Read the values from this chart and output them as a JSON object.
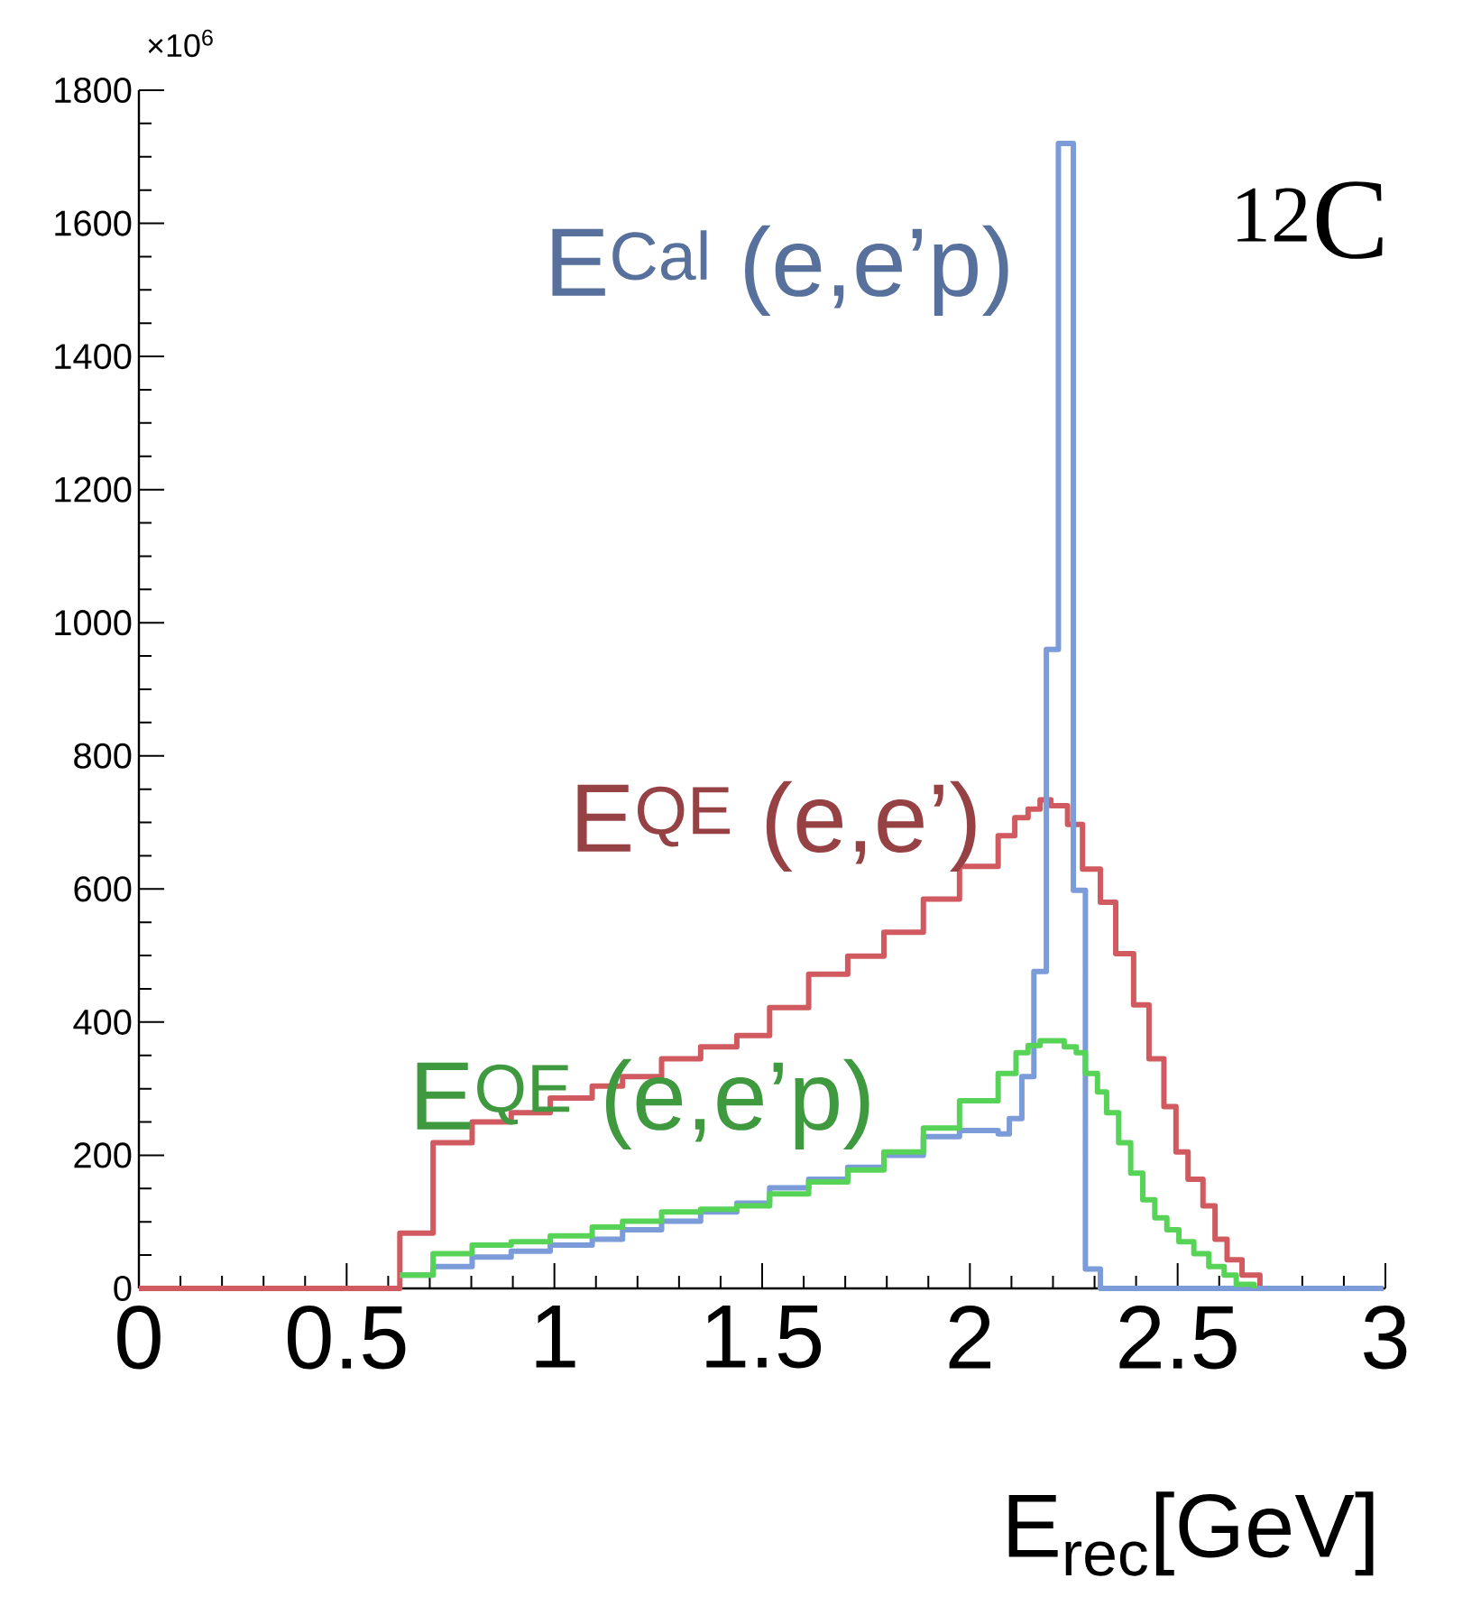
{
  "chart_data": {
    "type": "step",
    "xlabel": "E$_{rec}$[GeV]",
    "annotations": [
      "×10$^{6}$",
      "$^{12}$C"
    ],
    "xlim": [
      0,
      3
    ],
    "xticks": [
      0,
      0.5,
      1,
      1.5,
      2,
      2.5,
      3
    ],
    "ylim": [
      0,
      1800
    ],
    "yticks": [
      0,
      200,
      400,
      600,
      800,
      1000,
      1200,
      1400,
      1600,
      1800
    ],
    "series": [
      {
        "name": "E$^{QE}$ (e,e’)",
        "color": "#d05a5f",
        "x": [
          0,
          0.628,
          0.708,
          0.802,
          0.896,
          0.99,
          1.091,
          1.164,
          1.258,
          1.352,
          1.439,
          1.518,
          1.612,
          1.706,
          1.793,
          1.888,
          1.975,
          2.068,
          2.108,
          2.14,
          2.169,
          2.195,
          2.235,
          2.271,
          2.314,
          2.351,
          2.394,
          2.431,
          2.467,
          2.496,
          2.525,
          2.561,
          2.59,
          2.619,
          2.655,
          2.698,
          2.995
        ],
        "values": [
          0,
          83,
          219,
          250,
          264,
          286,
          304,
          318,
          345,
          363,
          380,
          422,
          472,
          499,
          535,
          585,
          634,
          680,
          707,
          720,
          734,
          725,
          697,
          630,
          580,
          503,
          426,
          345,
          273,
          205,
          164,
          124,
          74,
          43,
          20,
          0,
          0
        ]
      },
      {
        "name": "E$^{Cal}$ (e,e’p)",
        "color": "#7b9bd9",
        "x": [
          0.628,
          0.708,
          0.802,
          0.896,
          0.99,
          1.091,
          1.164,
          1.258,
          1.352,
          1.439,
          1.518,
          1.612,
          1.706,
          1.793,
          1.888,
          1.975,
          2.068,
          2.095,
          2.125,
          2.154,
          2.184,
          2.213,
          2.249,
          2.278,
          2.314,
          2.995
        ],
        "values": [
          20,
          33,
          47,
          56,
          65,
          74,
          88,
          101,
          115,
          128,
          151,
          164,
          182,
          200,
          228,
          237,
          232,
          255,
          318,
          476,
          960,
          1720,
          598,
          29,
          0,
          0
        ]
      },
      {
        "name": "E$^{QE}$ (e,e’p)",
        "color": "#57d457",
        "x": [
          0.628,
          0.708,
          0.802,
          0.896,
          0.99,
          1.091,
          1.164,
          1.258,
          1.352,
          1.439,
          1.518,
          1.612,
          1.706,
          1.793,
          1.888,
          1.975,
          2.068,
          2.111,
          2.14,
          2.169,
          2.227,
          2.256,
          2.278,
          2.307,
          2.329,
          2.358,
          2.387,
          2.416,
          2.445,
          2.474,
          2.503,
          2.539,
          2.575,
          2.612,
          2.641,
          2.684
        ],
        "values": [
          20,
          52,
          65,
          70,
          79,
          92,
          101,
          115,
          119,
          124,
          142,
          160,
          178,
          205,
          241,
          282,
          323,
          354,
          365,
          372,
          363,
          354,
          323,
          295,
          264,
          219,
          173,
          133,
          106,
          88,
          70,
          52,
          33,
          20,
          6,
          0
        ]
      }
    ]
  }
}
